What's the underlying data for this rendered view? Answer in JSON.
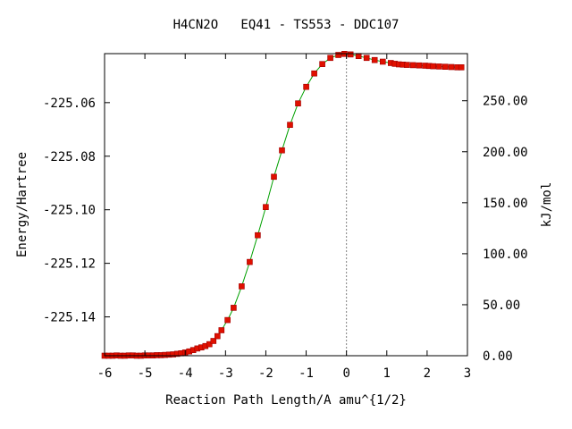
{
  "chart_data": {
    "type": "line",
    "title": "H4CN2O   EQ41 - TS553 - DDC107",
    "xlabel": "Reaction Path Length/A amu^{1/2}",
    "ylabel": "Energy/Hartree",
    "y2label": "kJ/mol",
    "xlim": [
      -6,
      3
    ],
    "ylim": [
      -225.1545,
      -225.0417
    ],
    "y2lim": [
      0.0,
      296.2
    ],
    "xticks": [
      "-6",
      "-5",
      "-4",
      "-3",
      "-2",
      "-1",
      "0",
      "1",
      "2",
      "3"
    ],
    "yticks": [
      "-225.06",
      "-225.08",
      "-225.10",
      "-225.12",
      "-225.14"
    ],
    "y2ticks": [
      "0.00",
      "50.00",
      "100.00",
      "150.00",
      "200.00",
      "250.00"
    ],
    "ts_marker_x": 0.0,
    "line_color": "#00a000",
    "marker_color": "#e01000",
    "series": [
      {
        "x": [
          -6.0,
          -5.9,
          -5.8,
          -5.7,
          -5.6,
          -5.5,
          -5.4,
          -5.3,
          -5.2,
          -5.1,
          -5.0,
          -4.9,
          -4.8,
          -4.7,
          -4.6,
          -4.5,
          -4.4,
          -4.3,
          -4.2,
          -4.1,
          -4.0,
          -3.9,
          -3.8,
          -3.7,
          -3.6,
          -3.5,
          -3.4,
          -3.3,
          -3.2,
          -3.1,
          -2.95,
          -2.8,
          -2.6,
          -2.4,
          -2.2,
          -2.0,
          -1.8,
          -1.6,
          -1.4,
          -1.2,
          -1.0,
          -0.8,
          -0.6,
          -0.4,
          -0.2,
          -0.05,
          0.1,
          0.3,
          0.5,
          0.7,
          0.9,
          1.1,
          1.2,
          1.3,
          1.4,
          1.5,
          1.65,
          1.8,
          1.95,
          2.05,
          2.15,
          2.3,
          2.45,
          2.6,
          2.75,
          2.85
        ],
        "y": [
          -225.1545,
          -225.1545,
          -225.1545,
          -225.1544,
          -225.1545,
          -225.1545,
          -225.1544,
          -225.1544,
          -225.1545,
          -225.1545,
          -225.1544,
          -225.1544,
          -225.1544,
          -225.1543,
          -225.1543,
          -225.1542,
          -225.1541,
          -225.154,
          -225.1538,
          -225.1536,
          -225.1533,
          -225.1529,
          -225.1524,
          -225.1518,
          -225.1514,
          -225.1509,
          -225.1502,
          -225.149,
          -225.1472,
          -225.145,
          -225.1412,
          -225.1366,
          -225.1286,
          -225.1195,
          -225.1095,
          -225.099,
          -225.0877,
          -225.0778,
          -225.0683,
          -225.0603,
          -225.0541,
          -225.0491,
          -225.0456,
          -225.0433,
          -225.0422,
          -225.0418,
          -225.042,
          -225.0426,
          -225.0433,
          -225.0441,
          -225.0447,
          -225.0452,
          -225.0455,
          -225.0457,
          -225.0458,
          -225.0459,
          -225.046,
          -225.0461,
          -225.0462,
          -225.0463,
          -225.0464,
          -225.0465,
          -225.0466,
          -225.0467,
          -225.0468,
          -225.0468
        ]
      }
    ]
  }
}
